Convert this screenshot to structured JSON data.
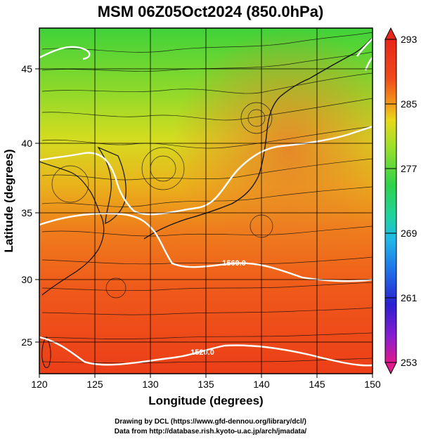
{
  "title": "MSM 06Z05Oct2024 (850.0hPa)",
  "x_axis": {
    "label": "Longitude (degrees)",
    "range": [
      120,
      150
    ],
    "ticks": [
      "120",
      "125",
      "130",
      "135",
      "140",
      "145",
      "150"
    ]
  },
  "y_axis": {
    "label": "Latitude  (degrees)",
    "range": [
      22.4,
      47.6
    ],
    "ticks": [
      "25",
      "30",
      "35",
      "40",
      "45"
    ]
  },
  "colorbar": {
    "range": [
      253,
      293
    ],
    "labels": [
      "293",
      "285",
      "277",
      "269",
      "261",
      "253"
    ],
    "colors": [
      "#e1188c",
      "#2a1fd0",
      "#1f8bf0",
      "#20d2c8",
      "#1fd27a",
      "#2fd24a",
      "#9ee02a",
      "#e8d818",
      "#f39a1a",
      "#f04a1a",
      "#e8261a"
    ]
  },
  "contours": [
    {
      "label": "1560.0"
    },
    {
      "label": "1520.0"
    }
  ],
  "credits": {
    "line1": "Drawing by DCL (https://www.gfd-dennou.org/library/dcl/)",
    "line2": "Data from http://database.rish.kyoto-u.ac.jp/arch/jmadata/"
  }
}
